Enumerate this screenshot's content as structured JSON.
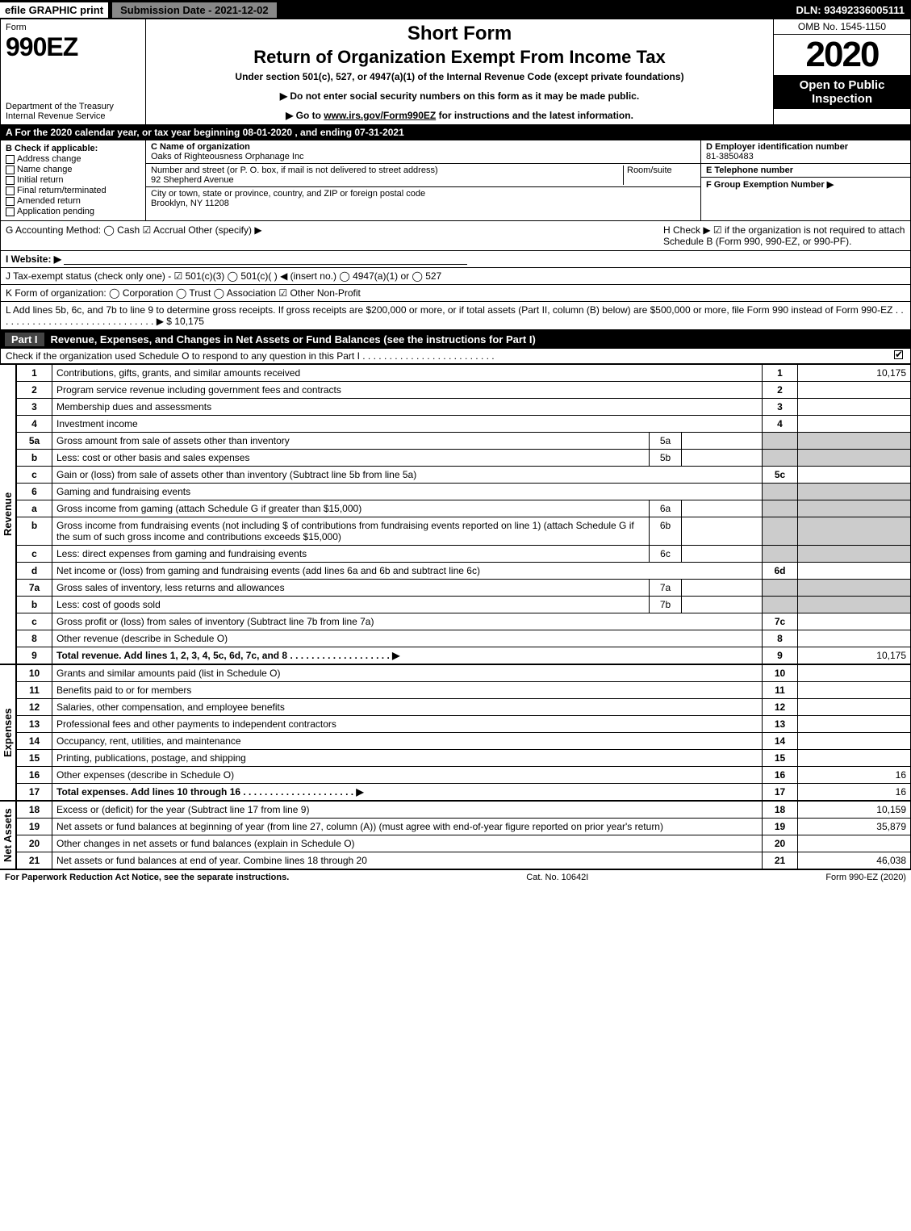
{
  "colors": {
    "black": "#000000",
    "white": "#ffffff",
    "grey_header": "#888888",
    "shade": "#cccccc",
    "part_bg": "#444444"
  },
  "top_bar": {
    "efile": "efile GRAPHIC print",
    "submission": "Submission Date - 2021-12-02",
    "dln": "DLN: 93492336005111"
  },
  "header": {
    "form_word": "Form",
    "form_number": "990EZ",
    "dept_line1": "Department of the Treasury",
    "dept_line2": "Internal Revenue Service",
    "short_form": "Short Form",
    "return_title": "Return of Organization Exempt From Income Tax",
    "under_section": "Under section 501(c), 527, or 4947(a)(1) of the Internal Revenue Code (except private foundations)",
    "arrow1": "▶ Do not enter social security numbers on this form as it may be made public.",
    "arrow2_prefix": "▶ Go to ",
    "arrow2_link": "www.irs.gov/Form990EZ",
    "arrow2_suffix": " for instructions and the latest information.",
    "omb": "OMB No. 1545-1150",
    "year": "2020",
    "open_public": "Open to Public Inspection"
  },
  "row_a": "A For the 2020 calendar year, or tax year beginning 08-01-2020 , and ending 07-31-2021",
  "box_b": {
    "title": "B Check if applicable:",
    "opts": [
      "Address change",
      "Name change",
      "Initial return",
      "Final return/terminated",
      "Amended return",
      "Application pending"
    ]
  },
  "box_c": {
    "name_label": "C Name of organization",
    "name": "Oaks of Righteousness Orphanage Inc",
    "street_label": "Number and street (or P. O. box, if mail is not delivered to street address)",
    "room_label": "Room/suite",
    "street": "92 Shepherd Avenue",
    "city_label": "City or town, state or province, country, and ZIP or foreign postal code",
    "city": "Brooklyn, NY  11208"
  },
  "box_d": {
    "label": "D Employer identification number",
    "value": "81-3850483"
  },
  "box_e": {
    "label": "E Telephone number",
    "value": ""
  },
  "box_f": {
    "label": "F Group Exemption Number ▶",
    "value": ""
  },
  "row_g": {
    "left": "G Accounting Method:  ◯ Cash  ☑ Accrual  Other (specify) ▶",
    "right": "H  Check ▶ ☑ if the organization is not required to attach Schedule B (Form 990, 990-EZ, or 990-PF)."
  },
  "row_i": "I Website: ▶",
  "row_j": "J Tax-exempt status (check only one) - ☑ 501(c)(3)  ◯ 501(c)(  ) ◀ (insert no.)  ◯ 4947(a)(1) or  ◯ 527",
  "row_k": "K Form of organization:  ◯ Corporation  ◯ Trust  ◯ Association  ☑ Other Non-Profit",
  "row_l": {
    "text": "L Add lines 5b, 6c, and 7b to line 9 to determine gross receipts. If gross receipts are $200,000 or more, or if total assets (Part II, column (B) below) are $500,000 or more, file Form 990 instead of Form 990-EZ . . . . . . . . . . . . . . . . . . . . . . . . . . . . . . ▶ $ ",
    "amount": "10,175"
  },
  "part1": {
    "label": "Part I",
    "title": "Revenue, Expenses, and Changes in Net Assets or Fund Balances (see the instructions for Part I)",
    "subtitle": "Check if the organization used Schedule O to respond to any question in this Part I . . . . . . . . . . . . . . . . . . . . . . . . .",
    "checked": true
  },
  "sections": {
    "revenue": "Revenue",
    "expenses": "Expenses",
    "net_assets": "Net Assets"
  },
  "lines": [
    {
      "n": "1",
      "desc": "Contributions, gifts, grants, and similar amounts received",
      "ref": "1",
      "amt": "10,175"
    },
    {
      "n": "2",
      "desc": "Program service revenue including government fees and contracts",
      "ref": "2",
      "amt": ""
    },
    {
      "n": "3",
      "desc": "Membership dues and assessments",
      "ref": "3",
      "amt": ""
    },
    {
      "n": "4",
      "desc": "Investment income",
      "ref": "4",
      "amt": ""
    },
    {
      "n": "5a",
      "desc": "Gross amount from sale of assets other than inventory",
      "sub": "5a",
      "subval": ""
    },
    {
      "n": "b",
      "desc": "Less: cost or other basis and sales expenses",
      "sub": "5b",
      "subval": ""
    },
    {
      "n": "c",
      "desc": "Gain or (loss) from sale of assets other than inventory (Subtract line 5b from line 5a)",
      "ref": "5c",
      "amt": ""
    },
    {
      "n": "6",
      "desc": "Gaming and fundraising events",
      "noamt": true
    },
    {
      "n": "a",
      "desc": "Gross income from gaming (attach Schedule G if greater than $15,000)",
      "sub": "6a",
      "subval": ""
    },
    {
      "n": "b",
      "desc": "Gross income from fundraising events (not including $                 of contributions from fundraising events reported on line 1) (attach Schedule G if the sum of such gross income and contributions exceeds $15,000)",
      "sub": "6b",
      "subval": ""
    },
    {
      "n": "c",
      "desc": "Less: direct expenses from gaming and fundraising events",
      "sub": "6c",
      "subval": ""
    },
    {
      "n": "d",
      "desc": "Net income or (loss) from gaming and fundraising events (add lines 6a and 6b and subtract line 6c)",
      "ref": "6d",
      "amt": ""
    },
    {
      "n": "7a",
      "desc": "Gross sales of inventory, less returns and allowances",
      "sub": "7a",
      "subval": ""
    },
    {
      "n": "b",
      "desc": "Less: cost of goods sold",
      "sub": "7b",
      "subval": ""
    },
    {
      "n": "c",
      "desc": "Gross profit or (loss) from sales of inventory (Subtract line 7b from line 7a)",
      "ref": "7c",
      "amt": ""
    },
    {
      "n": "8",
      "desc": "Other revenue (describe in Schedule O)",
      "ref": "8",
      "amt": ""
    },
    {
      "n": "9",
      "desc": "Total revenue. Add lines 1, 2, 3, 4, 5c, 6d, 7c, and 8 . . . . . . . . . . . . . . . . . . . ▶",
      "ref": "9",
      "amt": "10,175",
      "bold": true
    }
  ],
  "expense_lines": [
    {
      "n": "10",
      "desc": "Grants and similar amounts paid (list in Schedule O)",
      "ref": "10",
      "amt": ""
    },
    {
      "n": "11",
      "desc": "Benefits paid to or for members",
      "ref": "11",
      "amt": ""
    },
    {
      "n": "12",
      "desc": "Salaries, other compensation, and employee benefits",
      "ref": "12",
      "amt": ""
    },
    {
      "n": "13",
      "desc": "Professional fees and other payments to independent contractors",
      "ref": "13",
      "amt": ""
    },
    {
      "n": "14",
      "desc": "Occupancy, rent, utilities, and maintenance",
      "ref": "14",
      "amt": ""
    },
    {
      "n": "15",
      "desc": "Printing, publications, postage, and shipping",
      "ref": "15",
      "amt": ""
    },
    {
      "n": "16",
      "desc": "Other expenses (describe in Schedule O)",
      "ref": "16",
      "amt": "16"
    },
    {
      "n": "17",
      "desc": "Total expenses. Add lines 10 through 16 . . . . . . . . . . . . . . . . . . . . . ▶",
      "ref": "17",
      "amt": "16",
      "bold": true
    }
  ],
  "net_lines": [
    {
      "n": "18",
      "desc": "Excess or (deficit) for the year (Subtract line 17 from line 9)",
      "ref": "18",
      "amt": "10,159"
    },
    {
      "n": "19",
      "desc": "Net assets or fund balances at beginning of year (from line 27, column (A)) (must agree with end-of-year figure reported on prior year's return)",
      "ref": "19",
      "amt": "35,879"
    },
    {
      "n": "20",
      "desc": "Other changes in net assets or fund balances (explain in Schedule O)",
      "ref": "20",
      "amt": ""
    },
    {
      "n": "21",
      "desc": "Net assets or fund balances at end of year. Combine lines 18 through 20",
      "ref": "21",
      "amt": "46,038"
    }
  ],
  "footer": {
    "left": "For Paperwork Reduction Act Notice, see the separate instructions.",
    "mid": "Cat. No. 10642I",
    "right": "Form 990-EZ (2020)"
  }
}
